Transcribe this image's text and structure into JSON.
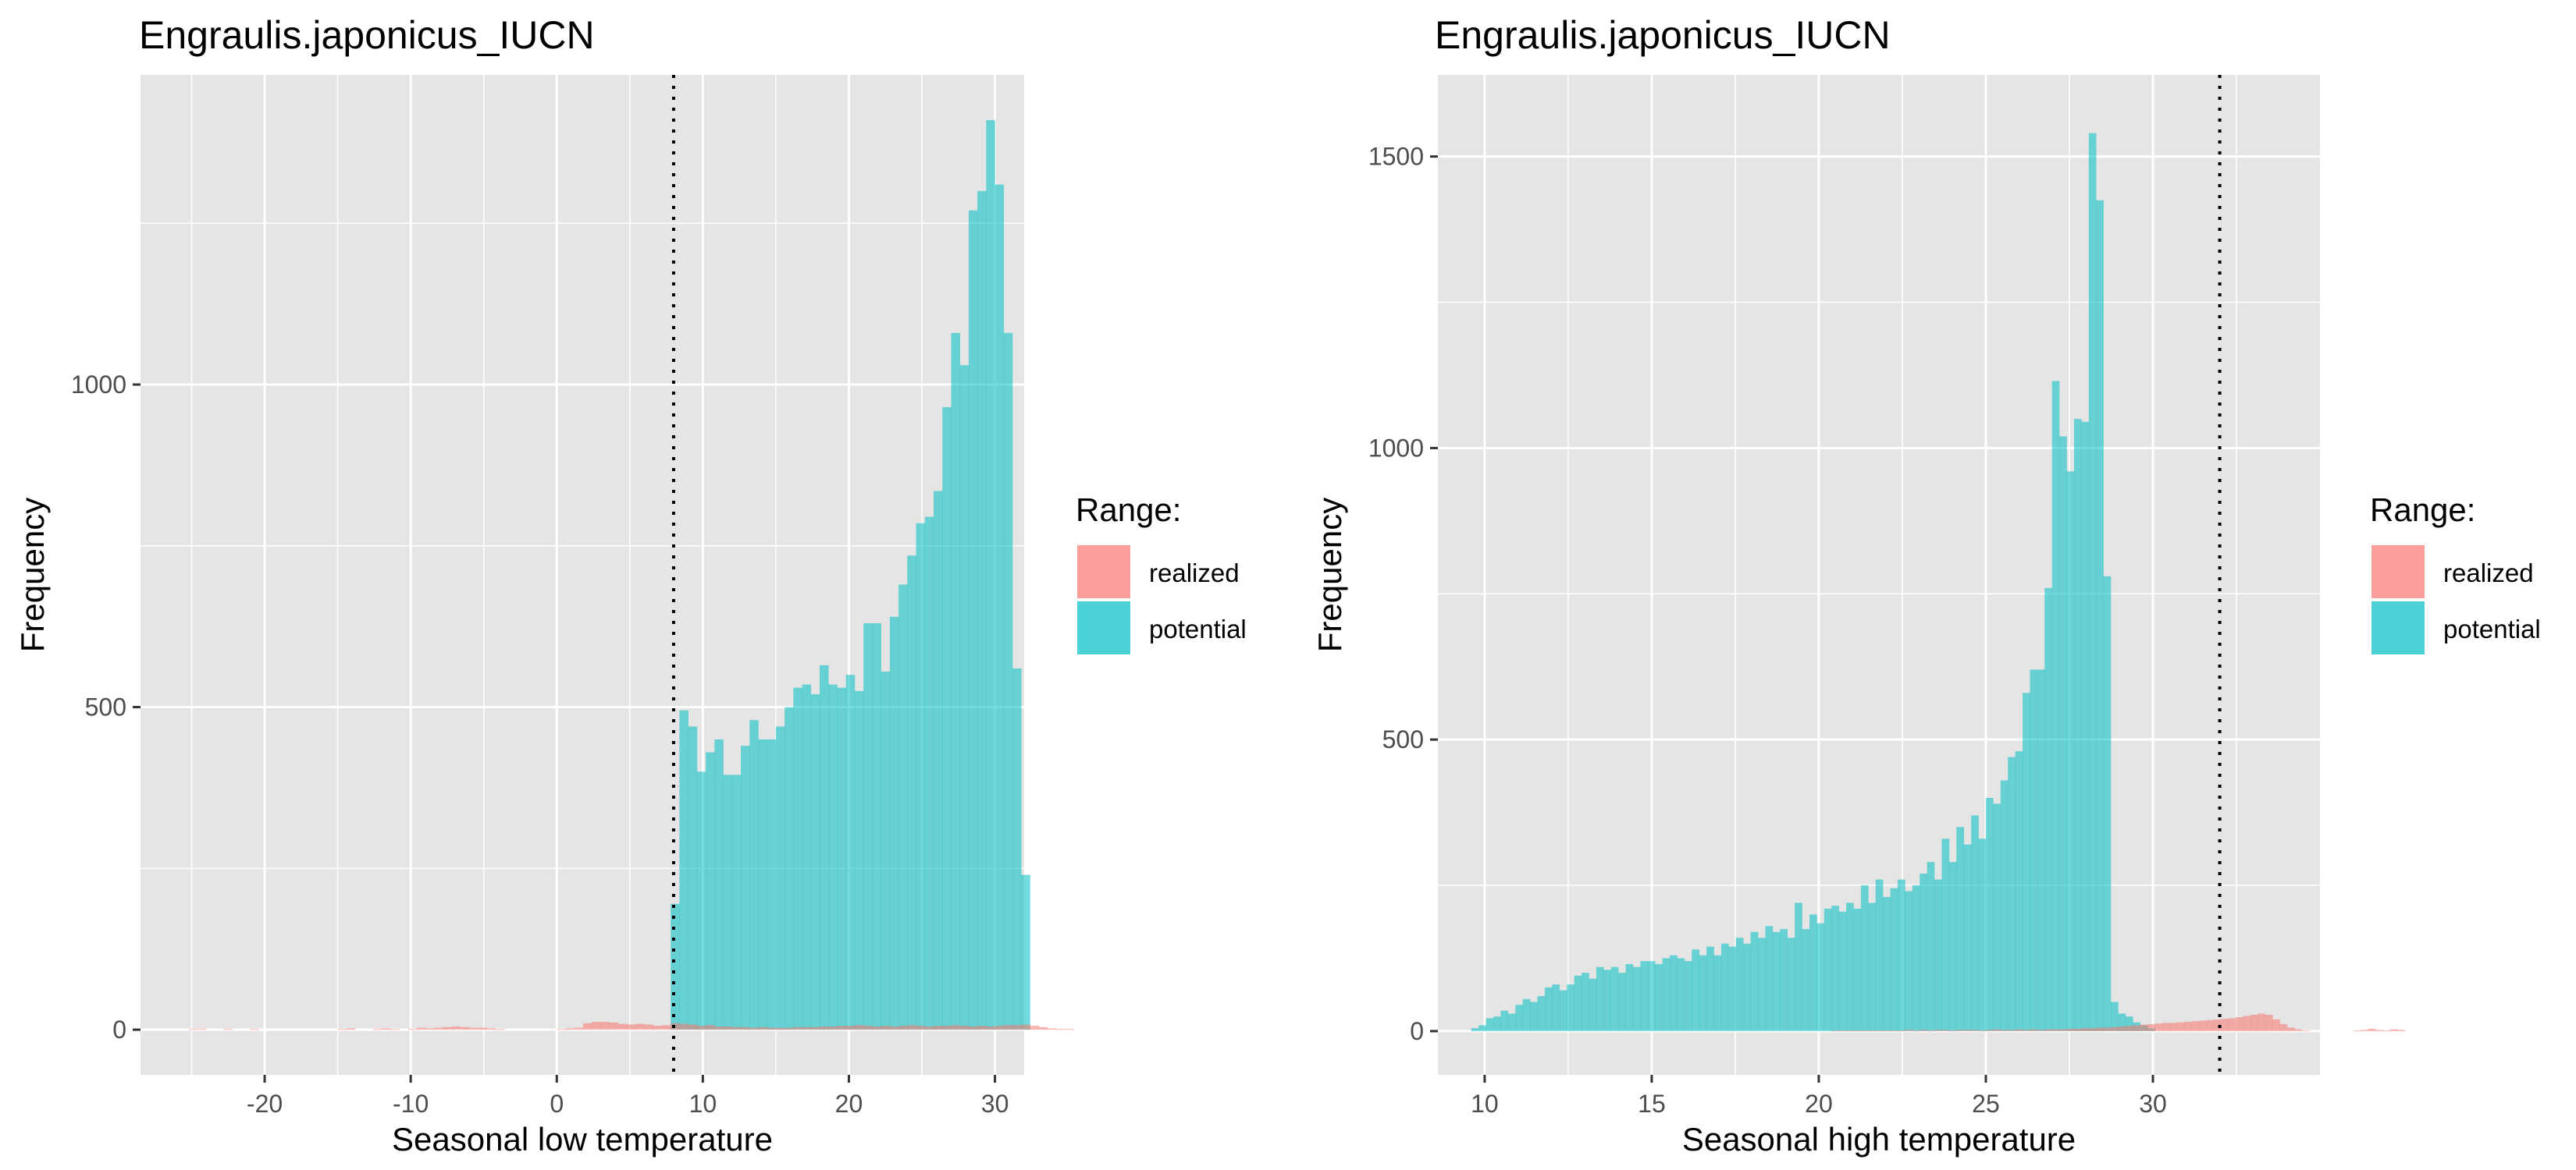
{
  "figure": {
    "background": "#ffffff",
    "panel_background": "#e5e5e5",
    "grid_color": "#ffffff"
  },
  "legend": {
    "title": "Range:",
    "items": [
      {
        "label": "realized",
        "color": "#f8766d"
      },
      {
        "label": "potential",
        "color": "#00bfc4"
      }
    ]
  },
  "chart_data": [
    {
      "type": "histogram",
      "title": "Engraulis.japonicus_IUCN",
      "xlabel": "Seasonal low temperature",
      "ylabel": "Frequency",
      "xlim": [
        -28.5,
        32.0
      ],
      "ylim": [
        -70,
        1480
      ],
      "x_ticks": [
        -20,
        -10,
        0,
        10,
        20,
        30
      ],
      "y_ticks": [
        0,
        500,
        1000
      ],
      "grid": true,
      "legend_position": "right",
      "bin_width": 0.6,
      "vline": {
        "x": 8.0,
        "style": "dotted"
      },
      "series": [
        {
          "name": "realized",
          "bins_start": -27.0,
          "values": [
            0,
            0,
            0,
            1,
            1,
            0,
            0,
            1,
            0,
            0,
            1,
            0,
            0,
            0,
            0,
            0,
            0,
            0,
            0,
            0,
            1,
            2,
            0,
            0,
            1,
            2,
            1,
            0,
            1,
            3,
            2,
            3,
            4,
            5,
            4,
            3,
            3,
            2,
            1,
            0,
            0,
            0,
            0,
            0,
            0,
            1,
            2,
            3,
            10,
            12,
            12,
            11,
            9,
            8,
            9,
            8,
            6,
            7,
            10,
            9,
            8,
            6,
            7,
            5,
            5,
            4,
            4,
            3,
            4,
            3,
            3,
            3,
            4,
            4,
            4,
            5,
            5,
            6,
            6,
            7,
            6,
            5,
            6,
            5,
            6,
            7,
            6,
            5,
            6,
            6,
            7,
            6,
            5,
            6,
            5,
            6,
            7,
            7,
            8,
            6,
            4,
            2,
            1,
            1,
            0
          ]
        },
        {
          "name": "potential",
          "bins_start": 7.8,
          "values": [
            195,
            495,
            470,
            400,
            430,
            450,
            395,
            395,
            440,
            480,
            450,
            450,
            470,
            500,
            530,
            535,
            520,
            565,
            535,
            530,
            550,
            525,
            630,
            630,
            555,
            640,
            690,
            735,
            785,
            795,
            835,
            965,
            1080,
            1030,
            1270,
            1300,
            1410,
            1310,
            1080,
            560,
            240
          ]
        }
      ]
    },
    {
      "type": "histogram",
      "title": "Engraulis.japonicus_IUCN",
      "xlabel": "Seasonal high temperature",
      "ylabel": "Frequency",
      "xlim": [
        8.6,
        35.0
      ],
      "ylim": [
        -75,
        1640
      ],
      "x_ticks": [
        10,
        15,
        20,
        25,
        30
      ],
      "y_ticks": [
        0,
        500,
        1000,
        1500
      ],
      "grid": true,
      "legend_position": "right",
      "bin_width": 0.22,
      "vline": {
        "x": 32.0,
        "style": "dotted"
      },
      "series": [
        {
          "name": "realized",
          "bins_start": 9.6,
          "values": [
            0,
            0,
            0,
            0,
            0,
            0,
            0,
            0,
            0,
            0,
            0,
            0,
            0,
            0,
            0,
            0,
            0,
            0,
            0,
            0,
            0,
            0,
            0,
            0,
            0,
            0,
            0,
            0,
            0,
            0,
            0,
            0,
            0,
            0,
            0,
            0,
            0,
            0,
            0,
            0,
            0,
            0,
            0,
            0,
            0,
            0,
            0,
            0,
            0,
            1,
            1,
            1,
            1,
            1,
            1,
            1,
            1,
            1,
            1,
            2,
            1,
            2,
            1,
            2,
            2,
            1,
            2,
            2,
            2,
            1,
            2,
            3,
            2,
            2,
            3,
            2,
            3,
            2,
            3,
            3,
            3,
            4,
            4,
            5,
            5,
            6,
            6,
            7,
            8,
            9,
            10,
            11,
            12,
            13,
            14,
            14,
            15,
            16,
            17,
            18,
            19,
            20,
            21,
            22,
            24,
            26,
            28,
            30,
            28,
            20,
            12,
            6,
            3,
            1,
            0,
            0,
            0,
            0,
            0,
            0,
            1,
            2,
            4,
            2,
            1,
            3,
            2,
            0,
            0,
            0,
            0,
            0
          ]
        },
        {
          "name": "potential",
          "bins_start": 9.6,
          "values": [
            5,
            10,
            22,
            25,
            35,
            30,
            45,
            55,
            50,
            60,
            75,
            80,
            70,
            80,
            95,
            100,
            90,
            110,
            105,
            110,
            100,
            115,
            110,
            120,
            120,
            115,
            125,
            130,
            125,
            120,
            140,
            130,
            145,
            130,
            150,
            145,
            160,
            150,
            170,
            160,
            180,
            170,
            175,
            160,
            220,
            175,
            200,
            185,
            210,
            215,
            205,
            220,
            210,
            250,
            220,
            260,
            230,
            245,
            260,
            240,
            250,
            270,
            290,
            260,
            330,
            290,
            350,
            320,
            370,
            330,
            400,
            390,
            430,
            470,
            480,
            580,
            620,
            620,
            760,
            1115,
            1020,
            960,
            1050,
            1045,
            1540,
            1425,
            780,
            50,
            30,
            25,
            15,
            10,
            5,
            0
          ]
        }
      ]
    }
  ]
}
